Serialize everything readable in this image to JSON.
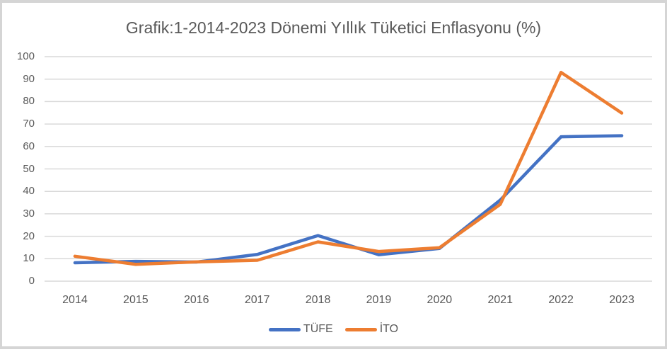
{
  "frame": {
    "border_color": "#D5D5D5"
  },
  "chart_data": {
    "type": "line",
    "title": "Grafik:1-2014-2023 Dönemi Yıllık Tüketici Enflasyonu (%)",
    "categories": [
      "2014",
      "2015",
      "2016",
      "2017",
      "2018",
      "2019",
      "2020",
      "2021",
      "2022",
      "2023"
    ],
    "series": [
      {
        "id": "tufe",
        "name": "TÜFE",
        "color": "#4472C4",
        "values": [
          8.2,
          8.8,
          8.5,
          11.9,
          20.3,
          11.8,
          14.6,
          36.1,
          64.3,
          64.8
        ]
      },
      {
        "id": "ito",
        "name": "İTO",
        "color": "#ED7D31",
        "values": [
          11.1,
          7.5,
          8.6,
          9.3,
          17.5,
          13.2,
          14.9,
          34.2,
          93.0,
          74.9
        ]
      }
    ],
    "xlabel": "",
    "ylabel": "",
    "ylim": [
      0,
      100
    ],
    "y_ticks": [
      0,
      10,
      20,
      30,
      40,
      50,
      60,
      70,
      80,
      90,
      100
    ],
    "grid": true,
    "legend_position": "bottom",
    "styles": {
      "grid_color": "#D9D9D9",
      "axis_text_color": "#595959",
      "title_color": "#595959"
    }
  }
}
